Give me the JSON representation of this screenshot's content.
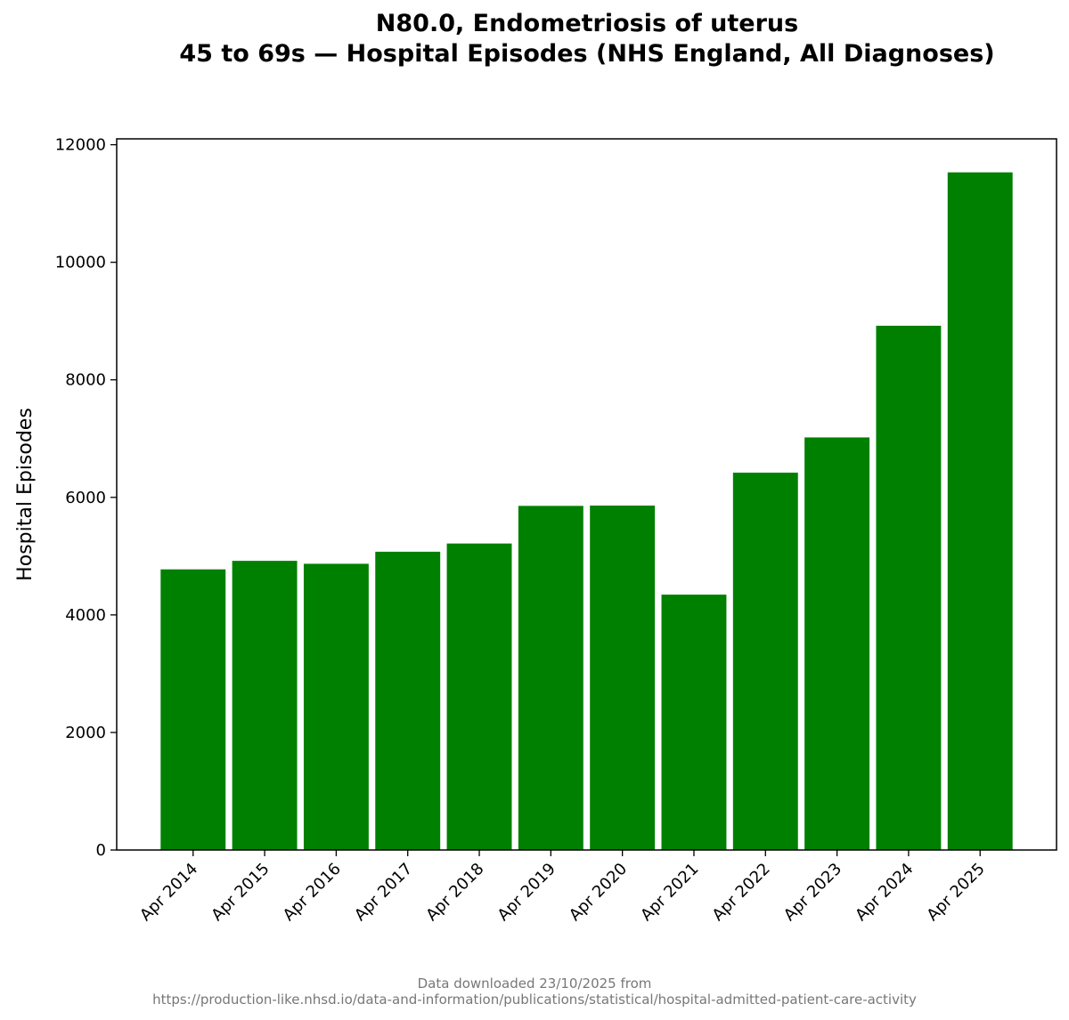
{
  "chart_data": {
    "type": "bar",
    "title_line1": "N80.0, Endometriosis of uterus",
    "title_line2": "45 to 69s — Hospital Episodes (NHS England, All Diagnoses)",
    "xlabel": "",
    "ylabel": "Hospital Episodes",
    "categories": [
      "Apr 2014",
      "Apr 2015",
      "Apr 2016",
      "Apr 2017",
      "Apr 2018",
      "Apr 2019",
      "Apr 2020",
      "Apr 2021",
      "Apr 2022",
      "Apr 2023",
      "Apr 2024",
      "Apr 2025"
    ],
    "values": [
      4775,
      4920,
      4870,
      5075,
      5215,
      5855,
      5860,
      4345,
      6420,
      7020,
      8920,
      11530
    ],
    "ylim": [
      0,
      12100
    ],
    "yticks": [
      0,
      2000,
      4000,
      6000,
      8000,
      10000,
      12000
    ],
    "bar_color": "#008000",
    "grid": false
  },
  "footer": {
    "line1": "Data downloaded 23/10/2025 from",
    "line2": "https://production-like.nhsd.io/data-and-information/publications/statistical/hospital-admitted-patient-care-activity"
  }
}
